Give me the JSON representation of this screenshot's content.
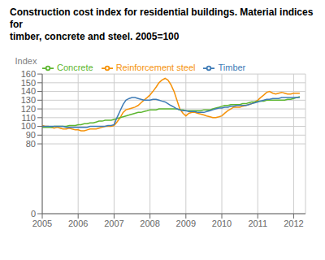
{
  "chart_data": {
    "type": "line",
    "title": "Construction cost index for residential buildings. Material indices for",
    "subtitle": "timber, concrete and steel. 2005=100",
    "y_label": "Index",
    "xlim": [
      2005.0,
      2012.33
    ],
    "ylim": [
      0,
      160
    ],
    "xticks": [
      2005,
      2006,
      2007,
      2008,
      2009,
      2010,
      2011,
      2012
    ],
    "yticks": [
      0,
      80,
      90,
      100,
      110,
      120,
      130,
      140,
      150,
      160
    ],
    "grid": true,
    "legend": "upper left",
    "x": [
      2005.0,
      2005.08,
      2005.17,
      2005.25,
      2005.33,
      2005.42,
      2005.5,
      2005.58,
      2005.67,
      2005.75,
      2005.83,
      2005.92,
      2006.0,
      2006.08,
      2006.17,
      2006.25,
      2006.33,
      2006.42,
      2006.5,
      2006.58,
      2006.67,
      2006.75,
      2006.83,
      2006.92,
      2007.0,
      2007.08,
      2007.17,
      2007.25,
      2007.33,
      2007.42,
      2007.5,
      2007.58,
      2007.67,
      2007.75,
      2007.83,
      2007.92,
      2008.0,
      2008.08,
      2008.17,
      2008.25,
      2008.33,
      2008.42,
      2008.5,
      2008.58,
      2008.67,
      2008.75,
      2008.83,
      2008.92,
      2009.0,
      2009.08,
      2009.17,
      2009.25,
      2009.33,
      2009.42,
      2009.5,
      2009.58,
      2009.67,
      2009.75,
      2009.83,
      2009.92,
      2010.0,
      2010.08,
      2010.17,
      2010.25,
      2010.33,
      2010.42,
      2010.5,
      2010.58,
      2010.67,
      2010.75,
      2010.83,
      2010.92,
      2011.0,
      2011.08,
      2011.17,
      2011.25,
      2011.33,
      2011.42,
      2011.5,
      2011.58,
      2011.67,
      2011.75,
      2011.83,
      2011.92,
      2012.0,
      2012.08,
      2012.17
    ],
    "series": [
      {
        "name": "Reinforcement steel",
        "color": "#F5920A",
        "values": [
          101,
          100,
          100,
          99,
          98,
          99,
          98,
          97,
          97,
          98,
          97,
          96,
          96,
          95,
          95,
          96,
          97,
          97,
          97,
          98,
          99,
          100,
          100,
          100,
          101,
          105,
          110,
          116,
          119,
          120,
          121,
          122,
          124,
          127,
          130,
          133,
          136,
          140,
          145,
          150,
          153,
          155,
          153,
          148,
          140,
          130,
          120,
          115,
          112,
          115,
          116,
          116,
          115,
          114,
          113,
          112,
          111,
          110,
          110,
          111,
          112,
          115,
          118,
          120,
          122,
          122,
          122,
          123,
          124,
          125,
          126,
          128,
          130,
          133,
          136,
          139,
          140,
          138,
          137,
          138,
          139,
          138,
          137,
          137,
          138,
          138,
          138
        ]
      },
      {
        "name": "Concrete",
        "color": "#5DB630",
        "values": [
          99,
          99,
          99,
          99,
          100,
          100,
          100,
          100,
          100,
          101,
          101,
          101,
          102,
          102,
          103,
          103,
          104,
          104,
          105,
          106,
          106,
          107,
          107,
          107,
          108,
          109,
          110,
          111,
          112,
          113,
          114,
          115,
          116,
          116,
          117,
          118,
          119,
          119,
          119,
          120,
          120,
          120,
          120,
          120,
          120,
          120,
          119,
          119,
          118,
          118,
          118,
          118,
          118,
          118,
          119,
          119,
          119,
          120,
          121,
          122,
          123,
          124,
          124,
          125,
          125,
          125,
          125,
          126,
          126,
          127,
          128,
          128,
          129,
          129,
          129,
          130,
          130,
          130,
          130,
          130,
          130,
          130,
          131,
          131,
          132,
          133,
          134
        ]
      },
      {
        "name": "Timber",
        "color": "#3E7BB6",
        "values": [
          100,
          100,
          100,
          100,
          100,
          100,
          100,
          100,
          99,
          99,
          99,
          99,
          99,
          99,
          99,
          99,
          100,
          100,
          100,
          100,
          100,
          100,
          101,
          101,
          102,
          110,
          118,
          125,
          130,
          132,
          133,
          133,
          132,
          131,
          130,
          130,
          130,
          131,
          131,
          130,
          129,
          128,
          126,
          124,
          122,
          120,
          119,
          118,
          118,
          117,
          117,
          117,
          116,
          116,
          116,
          117,
          118,
          119,
          120,
          121,
          121,
          122,
          122,
          123,
          123,
          124,
          124,
          124,
          124,
          125,
          126,
          127,
          128,
          129,
          130,
          131,
          131,
          132,
          132,
          132,
          133,
          133,
          133,
          133,
          133,
          133,
          133
        ]
      }
    ]
  }
}
